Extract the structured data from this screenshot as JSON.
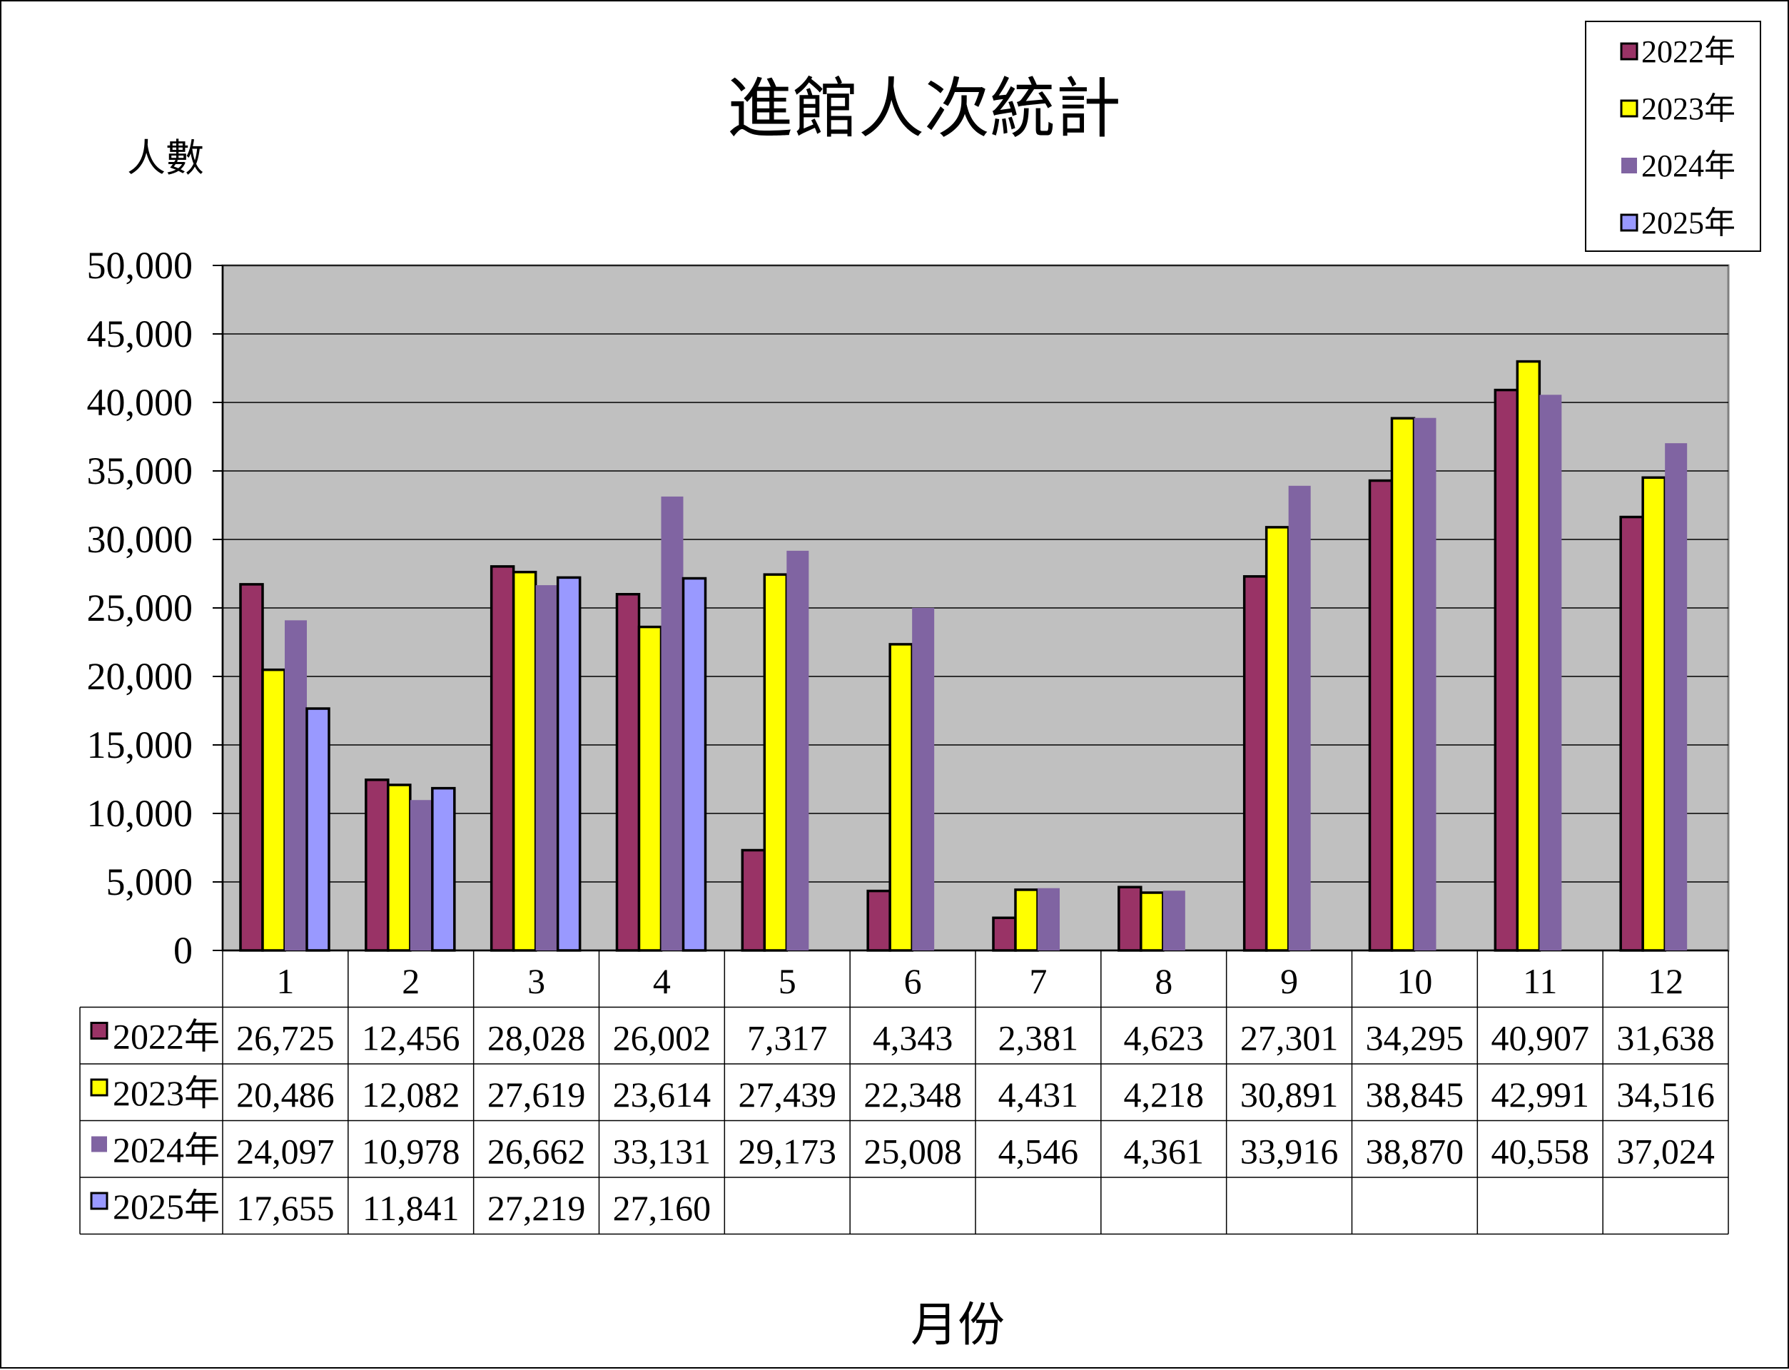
{
  "chart_data": {
    "type": "bar",
    "title": "進館人次統計",
    "ylabel": "人數",
    "xlabel": "月份",
    "ylim": [
      0,
      50000
    ],
    "yticks": [
      0,
      5000,
      10000,
      15000,
      20000,
      25000,
      30000,
      35000,
      40000,
      45000,
      50000
    ],
    "ytick_labels": [
      "0",
      "5,000",
      "10,000",
      "15,000",
      "20,000",
      "25,000",
      "30,000",
      "35,000",
      "40,000",
      "45,000",
      "50,000"
    ],
    "categories": [
      "1",
      "2",
      "3",
      "4",
      "5",
      "6",
      "7",
      "8",
      "9",
      "10",
      "11",
      "12"
    ],
    "grid": true,
    "legend_position": "top-right",
    "data_table": true,
    "plot_background": "#C0C0C0",
    "series": [
      {
        "name": "2022年",
        "color": "#993366",
        "outlined": true,
        "values": [
          26725,
          12456,
          28028,
          26002,
          7317,
          4343,
          2381,
          4623,
          27301,
          34295,
          40907,
          31638
        ],
        "labels": [
          "26,725",
          "12,456",
          "28,028",
          "26,002",
          "7,317",
          "4,343",
          "2,381",
          "4,623",
          "27,301",
          "34,295",
          "40,907",
          "31,638"
        ]
      },
      {
        "name": "2023年",
        "color": "#FFFF00",
        "outlined": true,
        "values": [
          20486,
          12082,
          27619,
          23614,
          27439,
          22348,
          4431,
          4218,
          30891,
          38845,
          42991,
          34516
        ],
        "labels": [
          "20,486",
          "12,082",
          "27,619",
          "23,614",
          "27,439",
          "22,348",
          "4,431",
          "4,218",
          "30,891",
          "38,845",
          "42,991",
          "34,516"
        ]
      },
      {
        "name": "2024年",
        "color": "#8064A2",
        "outlined": false,
        "values": [
          24097,
          10978,
          26662,
          33131,
          29173,
          25008,
          4546,
          4361,
          33916,
          38870,
          40558,
          37024
        ],
        "labels": [
          "24,097",
          "10,978",
          "26,662",
          "33,131",
          "29,173",
          "25,008",
          "4,546",
          "4,361",
          "33,916",
          "38,870",
          "40,558",
          "37,024"
        ]
      },
      {
        "name": "2025年",
        "color": "#9999FF",
        "outlined": true,
        "values": [
          17655,
          11841,
          27219,
          27160,
          null,
          null,
          null,
          null,
          null,
          null,
          null,
          null
        ],
        "labels": [
          "17,655",
          "11,841",
          "27,219",
          "27,160",
          "",
          "",
          "",
          "",
          "",
          "",
          "",
          ""
        ]
      }
    ]
  }
}
